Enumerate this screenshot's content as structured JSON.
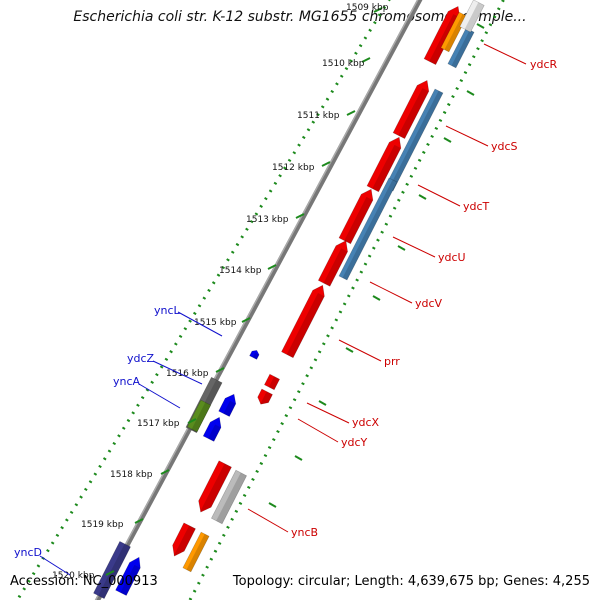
{
  "title": "Escherichia coli str. K-12 substr. MG1655 chromosome, comple...",
  "accession": "Accession: NC_000913",
  "summary": "Topology: circular; Length: 4,639,675 bp; Genes: 4,255",
  "ticks": [
    "1509 kbp",
    "1510 kbp",
    "1511 kbp",
    "1512 kbp",
    "1513 kbp",
    "1514 kbp",
    "1515 kbp",
    "1516 kbp",
    "1517 kbp",
    "1518 kbp",
    "1519 kbp",
    "1520 kbp"
  ],
  "genes_right": [
    {
      "name": "ydcR",
      "color": "#cc0000"
    },
    {
      "name": "ydcS",
      "color": "#cc0000"
    },
    {
      "name": "ydcT",
      "color": "#cc0000"
    },
    {
      "name": "ydcU",
      "color": "#cc0000"
    },
    {
      "name": "ydcV",
      "color": "#cc0000"
    },
    {
      "name": "prr",
      "color": "#cc0000"
    },
    {
      "name": "ydcX",
      "color": "#cc0000"
    },
    {
      "name": "ydcY",
      "color": "#cc0000"
    },
    {
      "name": "yncB",
      "color": "#cc0000"
    }
  ],
  "genes_left": [
    {
      "name": "yncL",
      "color": "#1010cc"
    },
    {
      "name": "ydcZ",
      "color": "#1010cc"
    },
    {
      "name": "yncA",
      "color": "#1010cc"
    },
    {
      "name": "yncD",
      "color": "#1010cc"
    }
  ],
  "colors": {
    "forward_gene": "#ee0000",
    "reverse_gene": "#0000ee",
    "blue_track": "#4682b4",
    "orange_track": "#ff9900",
    "gray_track": "#bbbbbb",
    "olive_track": "#5a8c1e",
    "purple_track": "#3a3a8a",
    "backbone": "#777777",
    "ticks": "#228b22"
  }
}
